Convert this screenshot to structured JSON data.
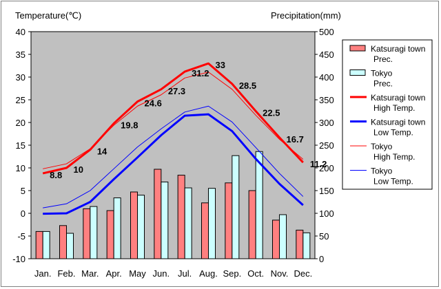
{
  "chart_data": {
    "type": "bar+line",
    "left_axis_title": "Temperature(℃)",
    "right_axis_title": "Precipitation(mm)",
    "left_ylim": [
      -10,
      40
    ],
    "left_ticks": [
      "40",
      "35",
      "30",
      "25",
      "20",
      "15",
      "10",
      "5",
      "0",
      "-5",
      "-10"
    ],
    "right_ylim": [
      0,
      500
    ],
    "right_ticks": [
      "500",
      "450",
      "400",
      "350",
      "300",
      "250",
      "200",
      "150",
      "100",
      "50",
      "0"
    ],
    "categories": [
      "Jan.",
      "Feb.",
      "Mar.",
      "Apr.",
      "May",
      "Jun.",
      "Jul.",
      "Aug.",
      "Sep.",
      "Oct.",
      "Nov.",
      "Dec."
    ],
    "grid": false,
    "bar_series": [
      {
        "name": "Katsuragi town Prec.",
        "legend_line1": "Katsuragi town",
        "legend_line2": "Prec.",
        "color": "#ff8080",
        "axis": "right",
        "values": [
          60,
          73,
          110,
          106,
          147,
          197,
          184,
          123,
          167,
          150,
          85,
          63
        ]
      },
      {
        "name": "Tokyo Prec.",
        "legend_line1": "Tokyo",
        "legend_line2": "Prec.",
        "color": "#ccffff",
        "axis": "right",
        "values": [
          60,
          56,
          115,
          134,
          140,
          169,
          156,
          155,
          227,
          236,
          97,
          57
        ]
      }
    ],
    "line_series": [
      {
        "name": "Katsuragi town High Temp.",
        "legend_line1": "Katsuragi town",
        "legend_line2": "High Temp.",
        "color": "#ff0000",
        "width": 3,
        "axis": "left",
        "values": [
          8.8,
          10,
          14,
          19.8,
          24.6,
          27.3,
          31.2,
          33,
          28.5,
          22.5,
          16.7,
          11.2
        ],
        "labels": [
          "8.8",
          "10",
          "14",
          "19.8",
          "24.6",
          "27.3",
          "31.2",
          "33",
          "28.5",
          "22.5",
          "16.7",
          "11.2"
        ]
      },
      {
        "name": "Katsuragi town Low Temp.",
        "legend_line1": "Katsuragi town",
        "legend_line2": "Low Temp.",
        "color": "#0000ff",
        "width": 3,
        "axis": "left",
        "values": [
          -0.1,
          0,
          2.5,
          7.5,
          12.3,
          17.2,
          21.5,
          21.8,
          18.1,
          12,
          6.5,
          1.8
        ]
      },
      {
        "name": "Tokyo High Temp.",
        "legend_line1": "Tokyo",
        "legend_line2": "High Temp.",
        "color": "#ff0000",
        "width": 1,
        "axis": "left",
        "values": [
          9.8,
          10.9,
          14.2,
          19.4,
          23.6,
          26.1,
          29.8,
          31.1,
          27.3,
          21.6,
          16.3,
          11.9
        ]
      },
      {
        "name": "Tokyo Low Temp.",
        "legend_line1": "Tokyo",
        "legend_line2": "Low Temp.",
        "color": "#0000ff",
        "width": 1,
        "axis": "left",
        "values": [
          1.2,
          2.1,
          5,
          9.8,
          14.6,
          18.6,
          22.3,
          23.6,
          20.1,
          14.5,
          8.8,
          3.7
        ]
      }
    ],
    "legend_order": [
      0,
      1,
      2,
      3,
      4,
      5
    ],
    "legend_placement": "right"
  }
}
